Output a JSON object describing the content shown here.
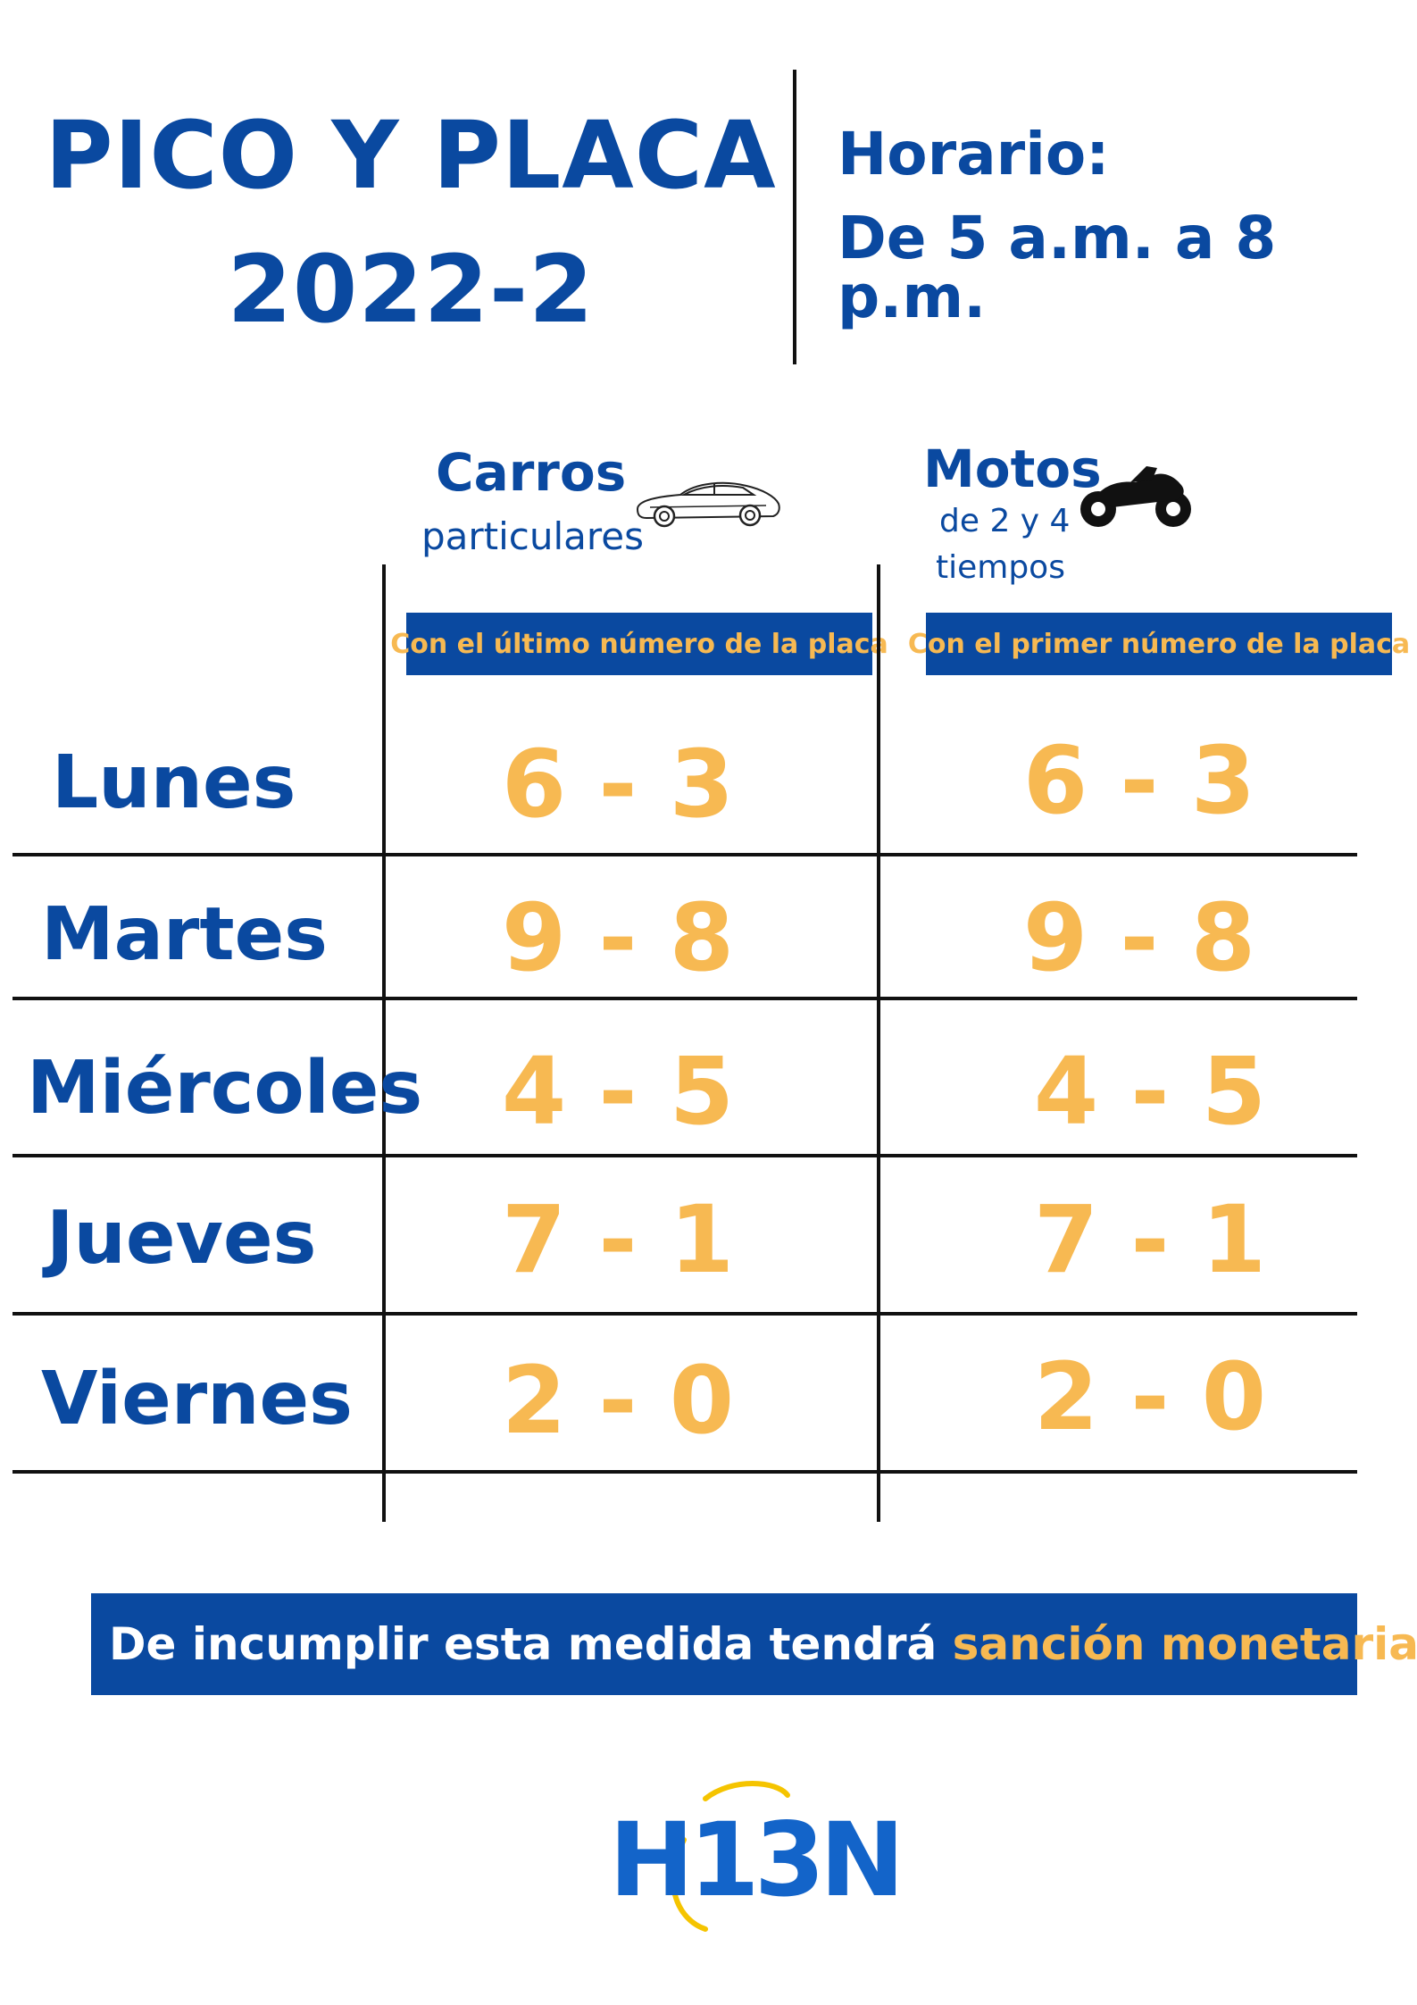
{
  "header": {
    "title_line1": "PICO Y PLACA",
    "title_line2": "2022-2",
    "schedule_label": "Horario:",
    "schedule_value": "De 5 a.m. a 8 p.m."
  },
  "columns": {
    "cars": {
      "title": "Carros",
      "subtitle": "particulares",
      "icon": "car-icon",
      "rule": "Con el último número de la placa"
    },
    "motos": {
      "title": "Motos",
      "subtitle_line1": "de 2 y 4",
      "subtitle_line2": "tiempos",
      "icon": "motorcycle-icon",
      "rule": "Con el primer número de la placa"
    }
  },
  "schedule": [
    {
      "day": "Lunes",
      "cars": "6 - 3",
      "motos": "6 - 3"
    },
    {
      "day": "Martes",
      "cars": "9 - 8",
      "motos": "9 - 8"
    },
    {
      "day": "Miércoles",
      "cars": "4 - 5",
      "motos": "4 - 5"
    },
    {
      "day": "Jueves",
      "cars": "7 - 1",
      "motos": "7 - 1"
    },
    {
      "day": "Viernes",
      "cars": "2 - 0",
      "motos": "2 - 0"
    }
  ],
  "notice": {
    "text": "De incumplir esta medida tendrá ",
    "highlight": "sanción monetaria."
  },
  "logo": {
    "text": "H13N"
  },
  "colors": {
    "brand_blue": "#0a49a0",
    "accent_orange": "#f7b952",
    "logo_yellow": "#f5c400"
  }
}
